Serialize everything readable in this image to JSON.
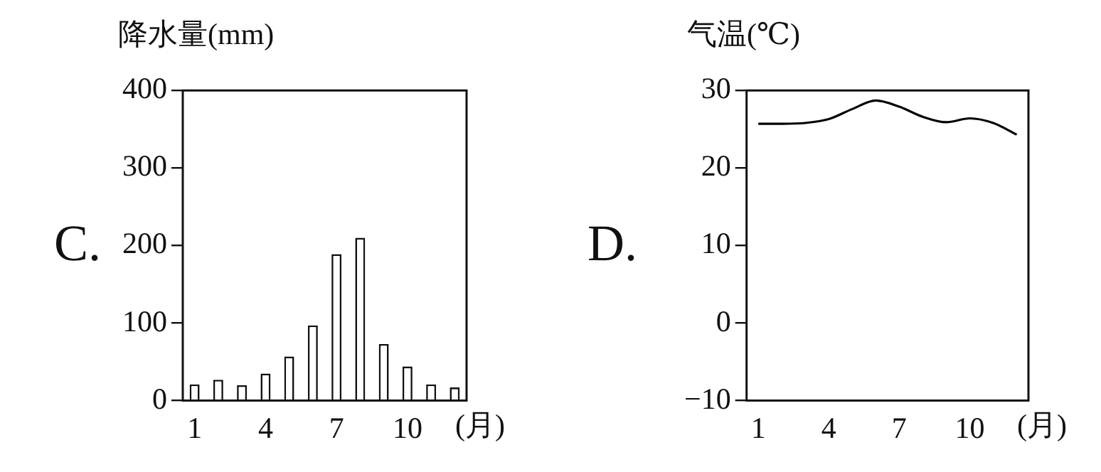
{
  "chart_data": [
    {
      "type": "bar",
      "title": "降水量(mm)",
      "xlabel": "(月)",
      "annotations": [
        "C."
      ],
      "categories": [
        "1",
        null,
        null,
        "4",
        null,
        null,
        "7",
        null,
        null,
        "10",
        null,
        null
      ],
      "values": [
        21,
        27,
        20,
        35,
        57,
        97,
        189,
        210,
        73,
        44,
        21,
        17
      ],
      "color": "#ffffff",
      "ylim": [
        0,
        400
      ],
      "yticks": [
        0,
        100,
        200,
        300,
        400
      ],
      "grid": false,
      "legend": false
    },
    {
      "type": "line",
      "title": "气温(℃)",
      "xlabel": "(月)",
      "annotations": [
        "D."
      ],
      "categories": [
        "1",
        null,
        null,
        "4",
        null,
        null,
        "7",
        null,
        null,
        "10",
        null,
        null
      ],
      "values": [
        25.7,
        25.7,
        25.8,
        26.3,
        27.6,
        28.7,
        27.9,
        26.6,
        25.9,
        26.4,
        25.8,
        24.3
      ],
      "color": "#000000",
      "ylim": [
        -10,
        30
      ],
      "yticks": [
        -10,
        0,
        10,
        20,
        30
      ],
      "grid": false,
      "legend": false,
      "marker": "none",
      "line_style": "solid"
    }
  ]
}
